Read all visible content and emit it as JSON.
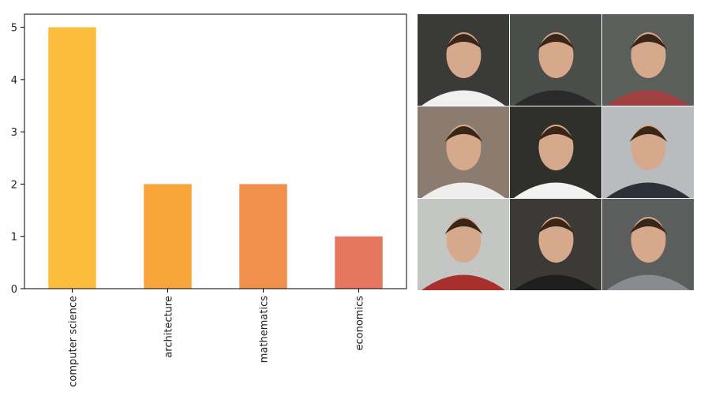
{
  "chart_data": {
    "type": "bar",
    "categories": [
      "computer science",
      "architecture",
      "mathematics",
      "economics"
    ],
    "values": [
      5,
      2,
      2,
      1
    ],
    "colors": [
      "#fbbd3b",
      "#f8a53a",
      "#f18f4d",
      "#e6775f"
    ],
    "ylim": [
      0,
      5.25
    ],
    "yticks": [
      0,
      1,
      2,
      3,
      4,
      5
    ]
  }
}
